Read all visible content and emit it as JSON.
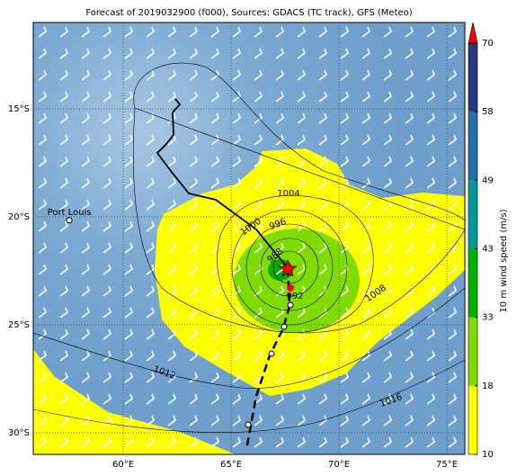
{
  "map": {
    "title": "Forecast of 2019032900 (f000), Sources: GDACS (TC track), GFS (Meteo)",
    "lonlim": [
      55.83,
      75.83
    ],
    "latlim": [
      -31,
      -11
    ],
    "lon_ticks": [
      {
        "value": 60,
        "label": "60°E"
      },
      {
        "value": 65,
        "label": "65°E"
      },
      {
        "value": 70,
        "label": "70°E"
      },
      {
        "value": 75,
        "label": "75°E"
      }
    ],
    "lat_ticks": [
      {
        "value": -15,
        "label": "15°S"
      },
      {
        "value": -20,
        "label": "20°S"
      },
      {
        "value": -25,
        "label": "25°S"
      },
      {
        "value": -30,
        "label": "30°S"
      }
    ],
    "grid": true,
    "place": {
      "label": "Port Louis",
      "lon": 57.5,
      "lat": -20.16
    },
    "contour_labels": [
      1004,
      1000,
      996,
      988,
      992,
      1008,
      1012,
      1016
    ],
    "colorbar": {
      "label": "10 m wind speed (m/s)",
      "ticks": [
        10,
        18,
        33,
        43,
        49,
        58,
        70
      ],
      "colors": [
        "#ffff00",
        "#80dc00",
        "#00b000",
        "#009a9a",
        "#2470a8",
        "#283a7e"
      ],
      "extend_color": "#ff0000"
    }
  }
}
